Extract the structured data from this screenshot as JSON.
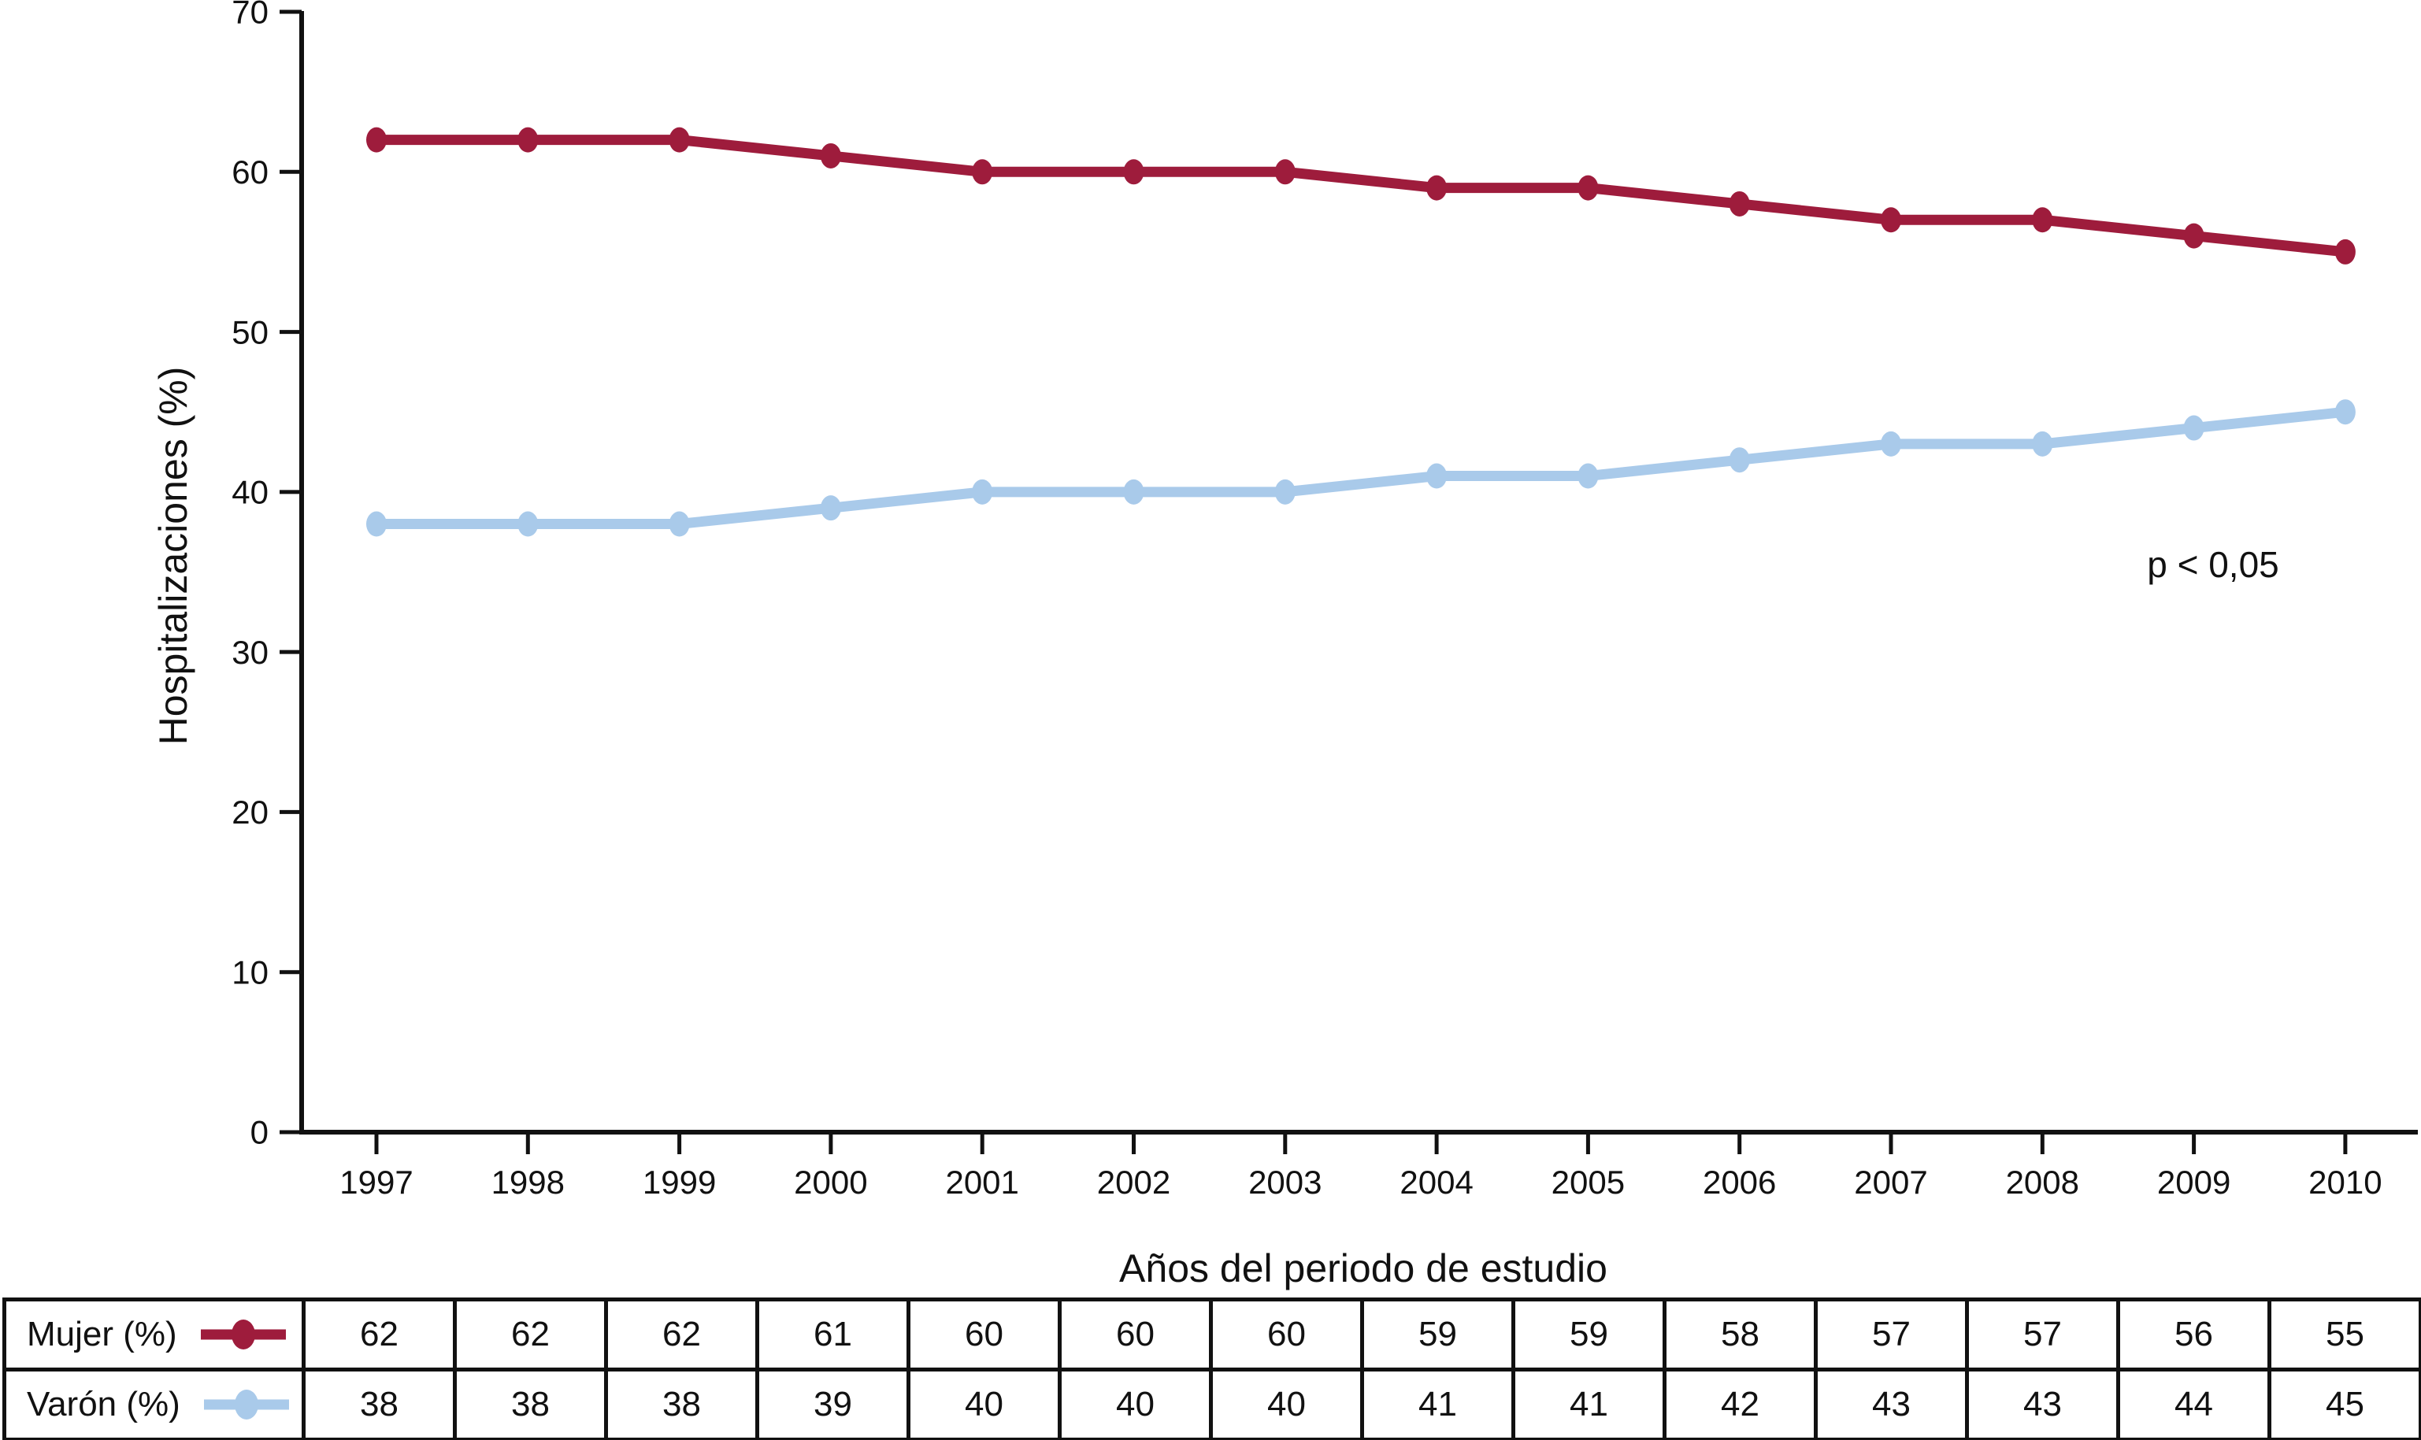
{
  "chart_data": {
    "type": "line",
    "title": "",
    "xlabel": "Años del periodo de estudio",
    "ylabel": "Hospitalizaciones (%)",
    "annotation": "p < 0,05",
    "categories": [
      "1997",
      "1998",
      "1999",
      "2000",
      "2001",
      "2002",
      "2003",
      "2004",
      "2005",
      "2006",
      "2007",
      "2008",
      "2009",
      "2010"
    ],
    "ylim": [
      0,
      70
    ],
    "yticks": [
      0,
      10,
      20,
      30,
      40,
      50,
      60,
      70
    ],
    "grid": false,
    "legend_position": "table rows bottom-left",
    "series": [
      {
        "name": "Mujer (%)",
        "color": "#9E1C3C",
        "marker": "circle",
        "values": [
          62,
          62,
          62,
          61,
          60,
          60,
          60,
          59,
          59,
          58,
          57,
          57,
          56,
          55
        ]
      },
      {
        "name": "Varón (%)",
        "color": "#A9CAEA",
        "marker": "circle",
        "values": [
          38,
          38,
          38,
          39,
          40,
          40,
          40,
          41,
          41,
          42,
          43,
          43,
          44,
          45
        ]
      }
    ]
  },
  "colors": {
    "axis": "#111111",
    "text": "#111111",
    "table_border": "#111111",
    "background": "#ffffff",
    "mujer_line": "#9E1C3C",
    "varon_line": "#A9CAEA"
  }
}
